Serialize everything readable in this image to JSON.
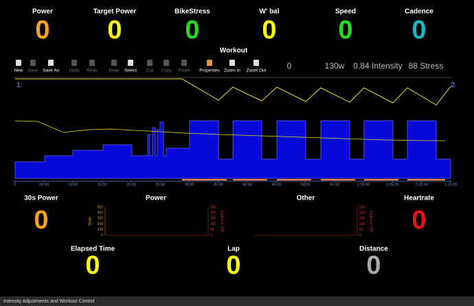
{
  "top_metrics": [
    {
      "label": "Power",
      "value": "0",
      "color": "#f7a21b"
    },
    {
      "label": "Target Power",
      "value": "0",
      "color": "#ffff00"
    },
    {
      "label": "BikeStress",
      "value": "0",
      "color": "#22dd22"
    },
    {
      "label": "W' bal",
      "value": "0",
      "color": "#ffff00"
    },
    {
      "label": "Speed",
      "value": "0",
      "color": "#22dd22"
    },
    {
      "label": "Cadence",
      "value": "0",
      "color": "#14b8c8"
    }
  ],
  "workout": {
    "title": "Workout",
    "toolbar": [
      {
        "label": "New",
        "enabled": true
      },
      {
        "label": "Save",
        "enabled": false
      },
      {
        "label": "Save As",
        "enabled": true
      },
      {
        "label": "Undo",
        "enabled": false
      },
      {
        "label": "Redo",
        "enabled": false
      },
      {
        "label": "Draw",
        "enabled": false
      },
      {
        "label": "Select",
        "enabled": true
      },
      {
        "label": "Cut",
        "enabled": false
      },
      {
        "label": "Copy",
        "enabled": false
      },
      {
        "label": "Paste",
        "enabled": false
      },
      {
        "label": "Properties",
        "enabled": true
      },
      {
        "label": "Zoom In",
        "enabled": true
      },
      {
        "label": "Zoom Out",
        "enabled": true
      }
    ],
    "summary": [
      "0",
      "130w",
      "0.84 Intensity",
      "88 Stress"
    ],
    "markers": [
      "1",
      "2"
    ],
    "x_ticks": [
      "0",
      "05:00",
      "10:00",
      "15:00",
      "20:00",
      "25:00",
      "30:00",
      "35:00",
      "40:00",
      "45:00",
      "50:00",
      "55:00",
      "1:00:00",
      "1:05:00",
      "1:10:00",
      "1:15:00"
    ]
  },
  "bottom_metrics": [
    {
      "label": "30s Power",
      "value": "0",
      "color": "#f7a21b"
    },
    {
      "label": "Heartrate",
      "value": "0",
      "color": "#ee1111"
    },
    {
      "label": "Elapsed Time",
      "value": "0",
      "color": "#ffff00"
    },
    {
      "label": "Lap",
      "value": "0",
      "color": "#ffff00"
    },
    {
      "label": "Distance",
      "value": "0",
      "color": "#aaaaaa"
    }
  ],
  "mini_charts": [
    {
      "title": "Power",
      "left_axis_label": "Watts",
      "left_ticks": [
        "0",
        "100",
        "200",
        "300",
        "400",
        "500"
      ],
      "right_axis_label": "Cadence / HR",
      "right_ticks": [
        "0",
        "50",
        "100",
        "150",
        "200",
        "250"
      ]
    },
    {
      "title": "Other",
      "right_axis_label": "Cadence / HR",
      "right_ticks": [
        "0",
        "50",
        "100",
        "150",
        "200",
        "250"
      ]
    }
  ],
  "status_bar": "Intensity Adjustments and Workout Control"
}
